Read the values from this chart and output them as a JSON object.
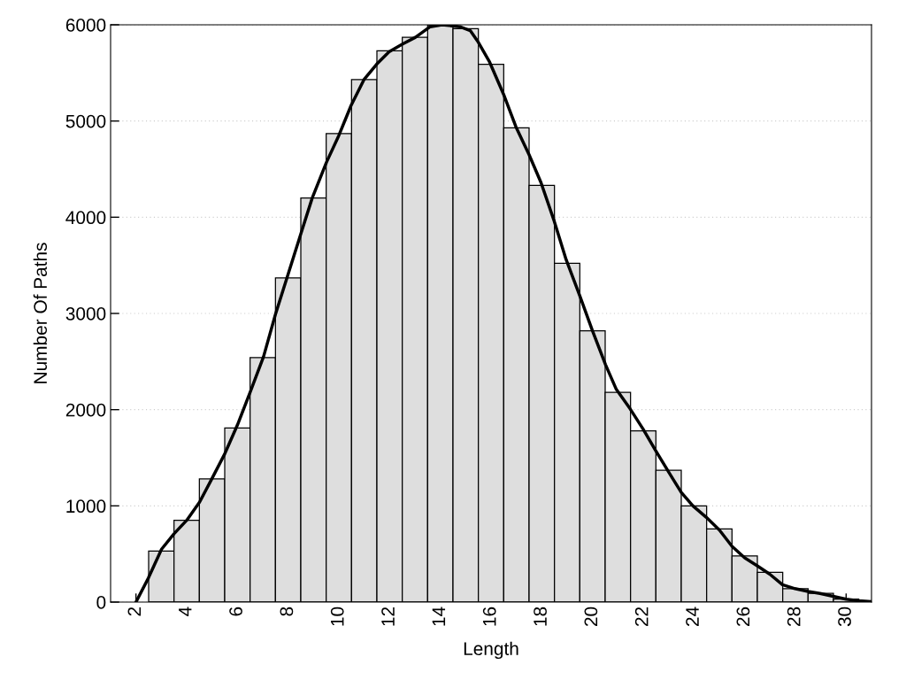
{
  "chart_data": {
    "type": "histogram",
    "xlabel": "Length",
    "ylabel": "Number Of Paths",
    "xlim": [
      1,
      31
    ],
    "xticks": [
      2,
      4,
      6,
      8,
      10,
      12,
      14,
      16,
      18,
      20,
      22,
      24,
      26,
      28,
      30
    ],
    "ylim": [
      0,
      6000
    ],
    "yticks": [
      0,
      1000,
      2000,
      3000,
      4000,
      5000,
      6000
    ],
    "grid": "y",
    "series": [
      {
        "type": "histogram",
        "color": "#dedede",
        "bins": [
          2.5,
          3.5,
          4.5,
          5.5,
          6.5,
          7.5,
          8.5,
          9.5,
          10.5,
          11.5,
          12.5,
          13.5,
          14.5,
          15.5,
          16.5,
          17.5,
          18.5,
          19.5,
          20.5,
          21.5,
          22.5,
          23.5,
          24.5,
          25.5,
          26.5,
          27.5,
          28.5,
          29.5,
          30.5
        ],
        "values": [
          530,
          850,
          1280,
          1810,
          2540,
          3370,
          4200,
          4870,
          5430,
          5730,
          5870,
          6000,
          5960,
          5590,
          4930,
          4330,
          3520,
          2820,
          2180,
          1780,
          1370,
          1000,
          760,
          480,
          310,
          140,
          90,
          30
        ]
      },
      {
        "type": "line",
        "color": "#000000",
        "x": [
          2,
          2.49,
          3.01,
          3.5,
          4.0,
          4.51,
          4.99,
          5.5,
          6.0,
          6.5,
          7.03,
          7.5,
          8.48,
          8.95,
          9.51,
          10.0,
          10.48,
          10.99,
          11.49,
          11.98,
          12.51,
          13.02,
          13.6,
          14.07,
          14.77,
          15.18,
          15.47,
          15.93,
          16.49,
          16.98,
          17.5,
          17.97,
          18.49,
          18.96,
          19.49,
          20.0,
          20.51,
          20.94,
          21.48,
          21.99,
          22.5,
          23.03,
          23.5,
          23.96,
          24.49,
          25.0,
          25.5,
          26.0,
          26.48,
          26.99,
          27.49,
          27.98,
          28.5,
          28.97,
          29.49,
          30.0,
          30.48,
          30.95
        ],
        "values": [
          0,
          250,
          550,
          710,
          850,
          1040,
          1280,
          1540,
          1840,
          2180,
          2550,
          2990,
          3810,
          4200,
          4570,
          4850,
          5160,
          5430,
          5590,
          5720,
          5800,
          5870,
          5980,
          6000,
          5980,
          5940,
          5830,
          5620,
          5280,
          4940,
          4650,
          4360,
          3960,
          3560,
          3190,
          2820,
          2470,
          2210,
          2010,
          1800,
          1570,
          1340,
          1140,
          1000,
          880,
          750,
          580,
          460,
          380,
          290,
          180,
          140,
          110,
          90,
          60,
          30,
          15,
          5
        ]
      }
    ]
  }
}
